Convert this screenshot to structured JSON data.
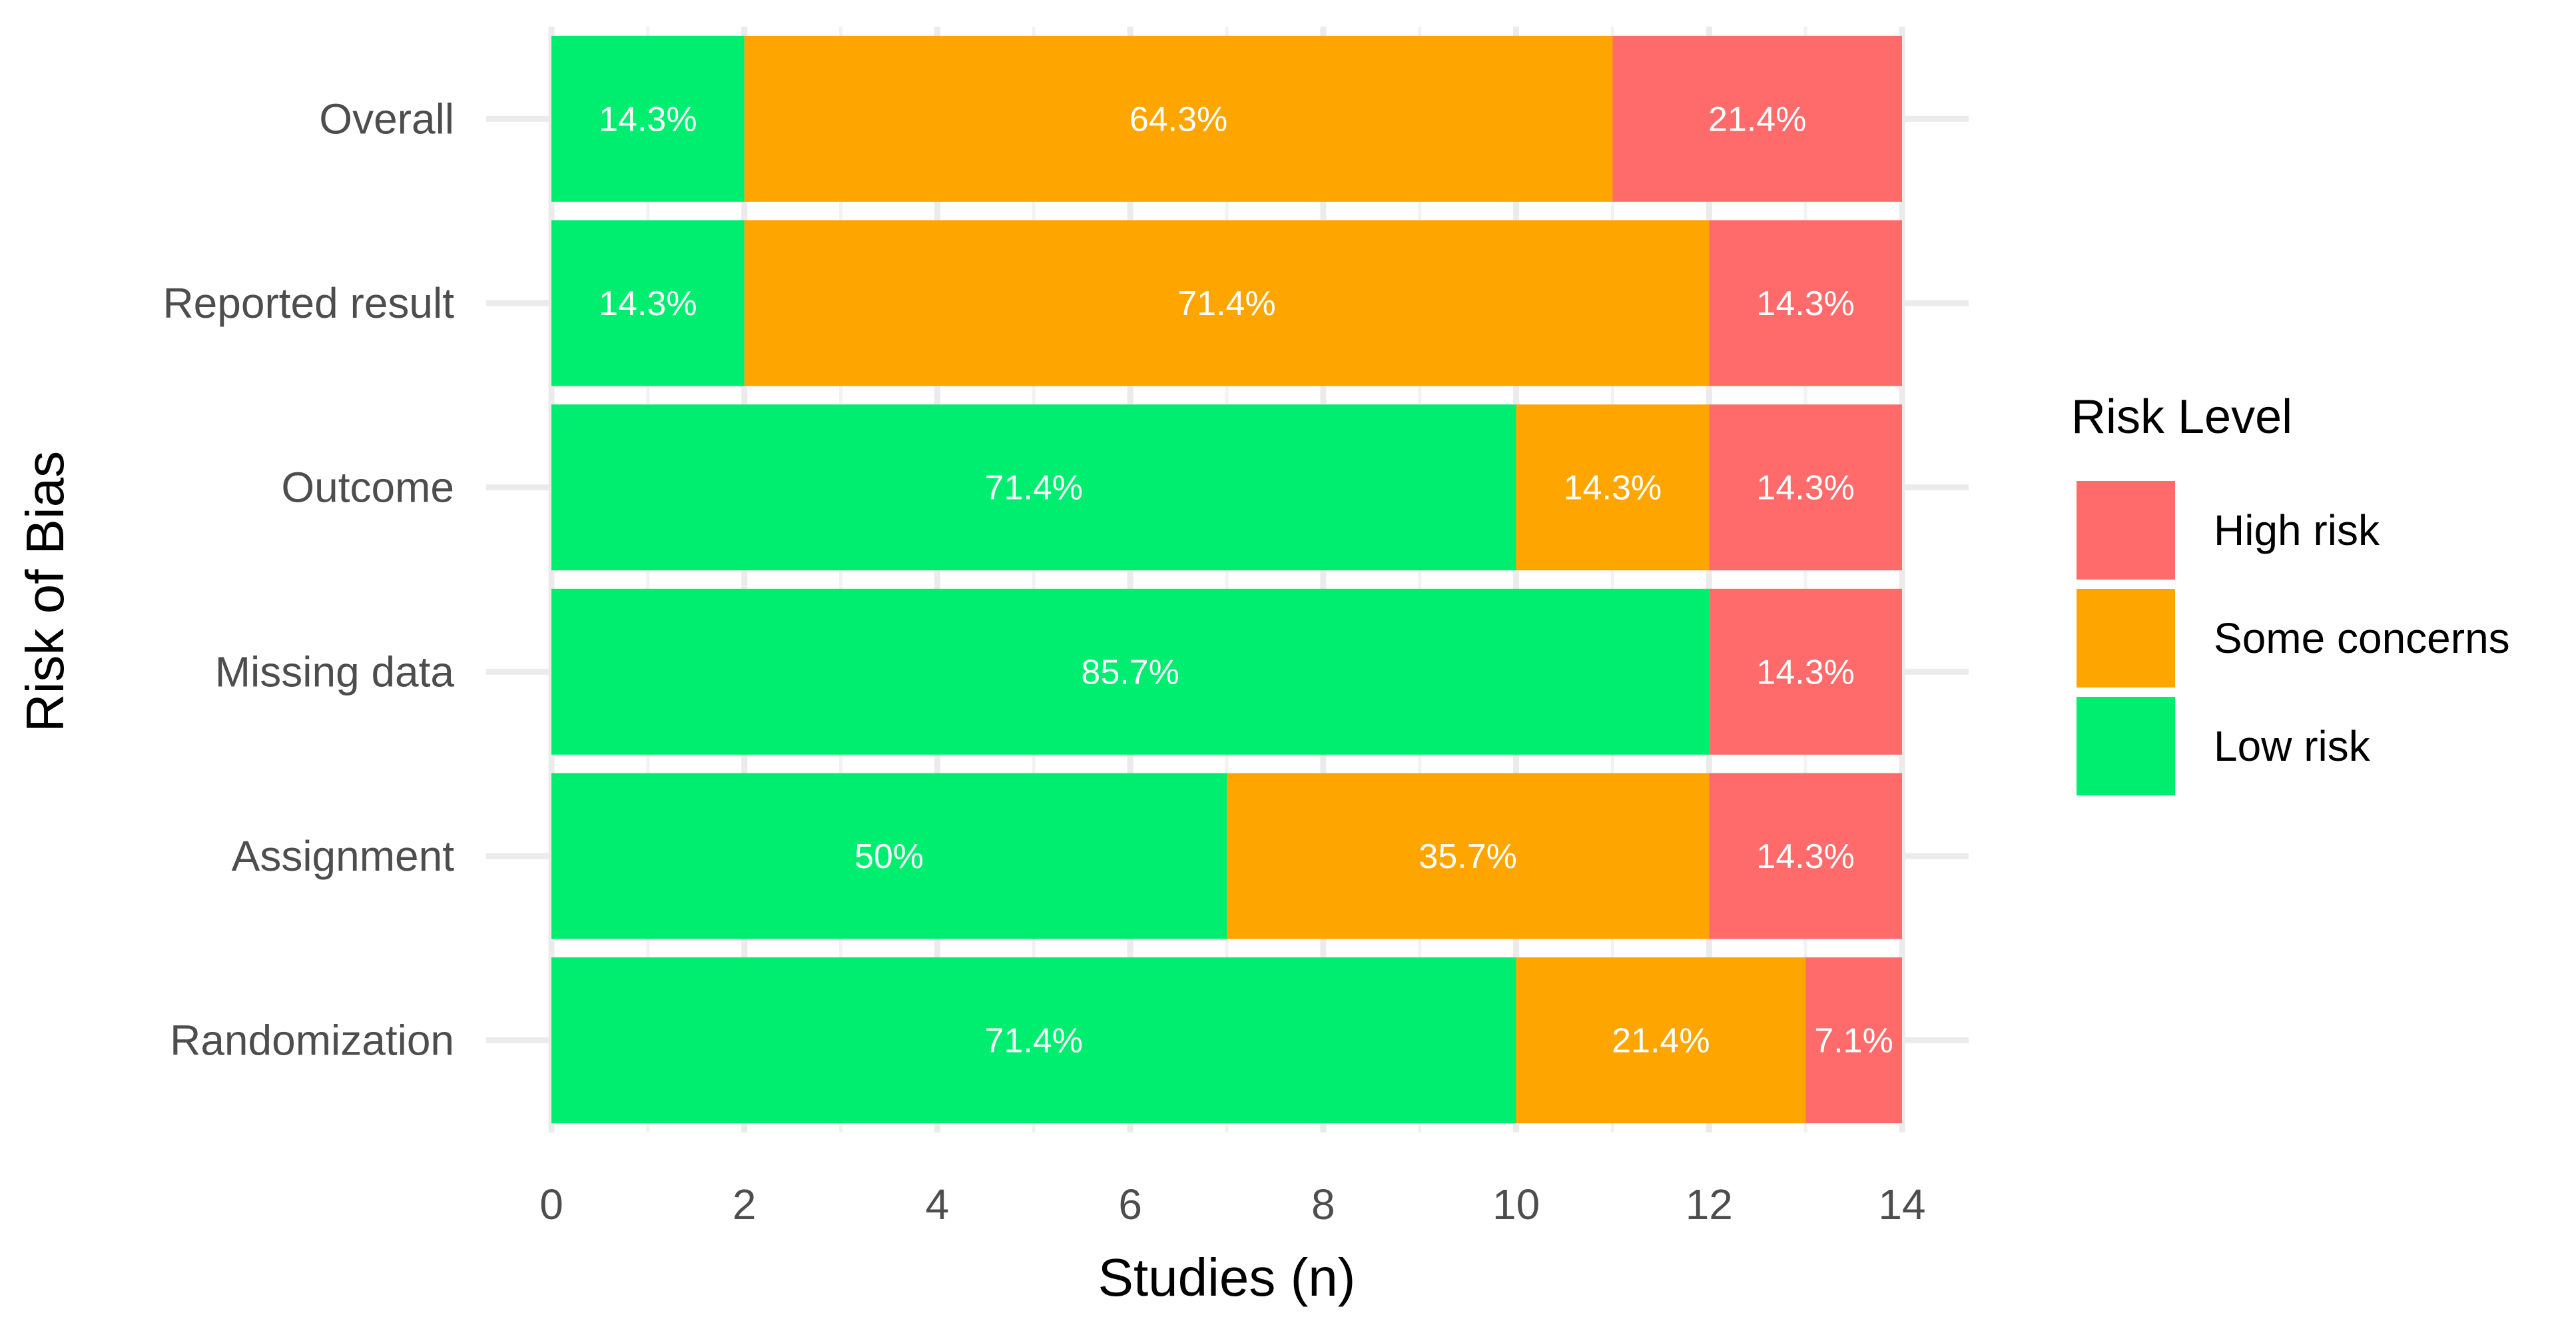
{
  "chart_data": {
    "type": "bar",
    "orientation": "horizontal",
    "stacked": true,
    "categories": [
      "Randomization",
      "Assignment",
      "Missing data",
      "Outcome",
      "Reported result",
      "Overall"
    ],
    "series": [
      {
        "name": "Low risk",
        "color": "#00EE6F",
        "values": [
          10,
          7,
          12,
          10,
          2,
          2
        ],
        "labels": [
          "71.4%",
          "50%",
          "85.7%",
          "71.4%",
          "14.3%",
          "14.3%"
        ]
      },
      {
        "name": "Some concerns",
        "color": "#FFA500",
        "values": [
          3,
          5,
          0,
          2,
          10,
          9
        ],
        "labels": [
          "21.4%",
          "35.7%",
          "",
          "14.3%",
          "71.4%",
          "64.3%"
        ]
      },
      {
        "name": "High risk",
        "color": "#FF6B6B",
        "values": [
          1,
          2,
          2,
          2,
          2,
          3
        ],
        "labels": [
          "7.1%",
          "14.3%",
          "14.3%",
          "14.3%",
          "14.3%",
          "21.4%"
        ]
      }
    ],
    "xlabel": "Studies (n)",
    "ylabel": "Risk of Bias",
    "xlim": [
      0,
      14
    ],
    "xticks": [
      0,
      2,
      4,
      6,
      8,
      10,
      12,
      14
    ],
    "grid": true,
    "legend": {
      "title": "Risk Level",
      "position": "right",
      "items": [
        {
          "label": "High risk",
          "color": "#FF6B6B"
        },
        {
          "label": "Some concerns",
          "color": "#FFA500"
        },
        {
          "label": "Low risk",
          "color": "#00EE6F"
        }
      ]
    }
  }
}
